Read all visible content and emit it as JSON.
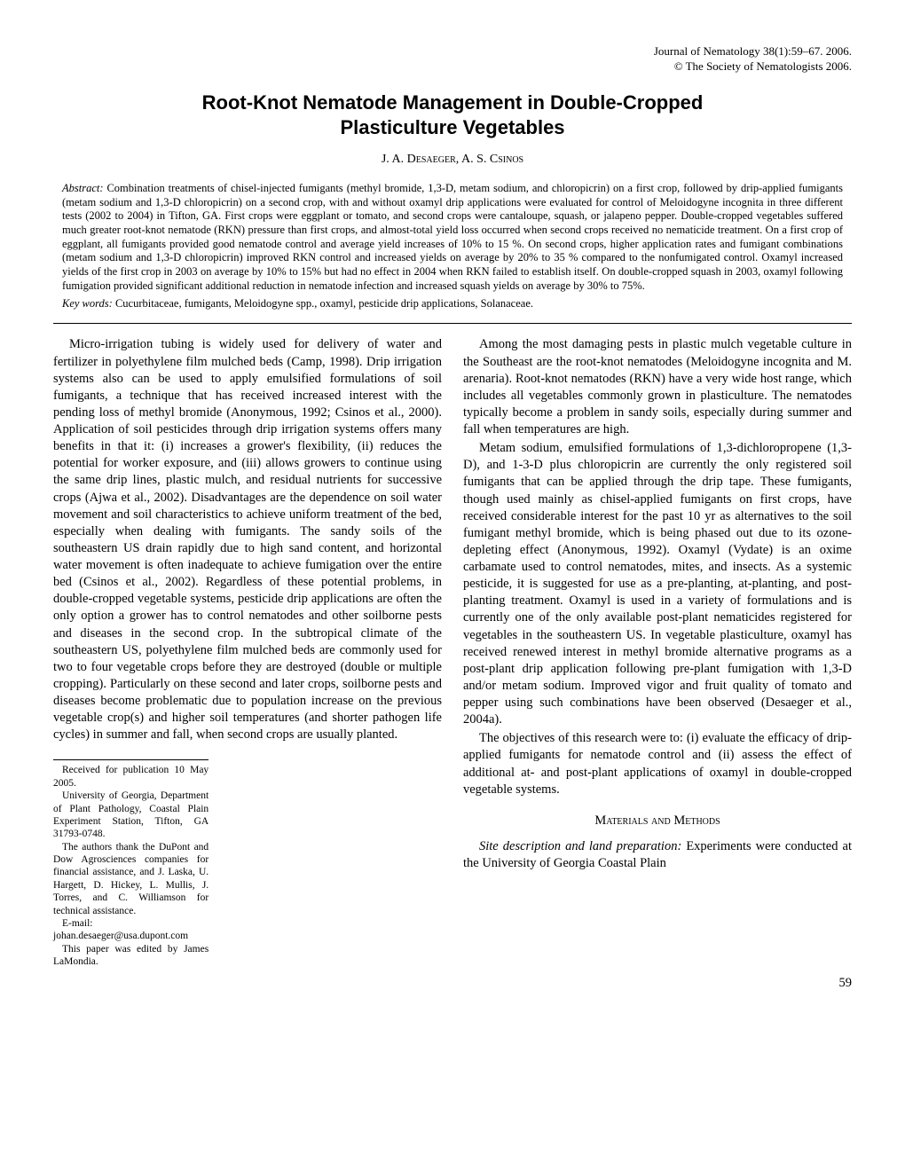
{
  "journal": {
    "line1": "Journal of Nematology 38(1):59–67. 2006.",
    "line2": "© The Society of Nematologists 2006."
  },
  "title_line1": "Root-Knot Nematode Management in Double-Cropped",
  "title_line2": "Plasticulture Vegetables",
  "authors": "J. A. Desaeger, A. S. Csinos",
  "abstract": {
    "label": "Abstract:",
    "text": " Combination treatments of chisel-injected fumigants (methyl bromide, 1,3-D, metam sodium, and chloropicrin) on a first crop, followed by drip-applied fumigants (metam sodium and 1,3-D   chloropicrin) on a second crop, with and without oxamyl drip applications were evaluated for control of Meloidogyne incognita in three different tests (2002 to 2004) in Tifton, GA. First crops were eggplant or tomato, and second crops were cantaloupe, squash, or jalapeno pepper. Double-cropped vegetables suffered much greater root-knot nematode (RKN) pressure than first crops, and almost-total yield loss occurred when second crops received no nematicide treatment. On a first crop of eggplant, all fumigants provided good nematode control and average yield increases of 10% to 15 %. On second crops, higher application rates and fumigant combinations (metam sodium and 1,3-D   chloropicrin) improved RKN control and increased yields on average by 20% to 35 % compared to the nonfumigated control. Oxamyl increased yields of the first crop in 2003 on average by 10% to 15% but had no effect in 2004 when RKN failed to establish itself. On double-cropped squash in 2003, oxamyl following fumigation provided significant additional reduction in nematode infection and increased squash yields on average by 30% to 75%."
  },
  "keywords": {
    "label": "Key words:",
    "text": " Cucurbitaceae, fumigants, Meloidogyne spp., oxamyl, pesticide drip applications, Solanaceae."
  },
  "col1": {
    "p1": "Micro-irrigation tubing is widely used for delivery of water and fertilizer in polyethylene film mulched beds (Camp, 1998). Drip irrigation systems also can be used to apply emulsified formulations of soil fumigants, a technique that has received increased interest with the pending loss of methyl bromide (Anonymous, 1992; Csinos et al., 2000). Application of soil pesticides through drip irrigation systems offers many benefits in that it: (i) increases a grower's flexibility, (ii) reduces the potential for worker exposure, and (iii) allows growers to continue using the same drip lines, plastic mulch, and residual nutrients for successive crops (Ajwa et al., 2002). Disadvantages are the dependence on soil water movement and soil characteristics to achieve uniform treatment of the bed, especially when dealing with fumigants. The sandy soils of the southeastern US drain rapidly due to high sand content, and horizontal water movement is often inadequate to achieve fumigation over the entire bed (Csinos et al., 2002). Regardless of these potential problems, in double-cropped vegetable systems, pesticide drip applications are often the only option a grower has to control nematodes and other soilborne pests and diseases in the second crop. In the subtropical climate of the southeastern US, polyethylene film mulched beds are commonly used for two to four vegetable crops before they are destroyed (double or multiple cropping). Particularly on these second and later crops, soilborne pests and diseases become problematic due to population increase on the previous vegetable crop(s) and higher soil temperatures (and shorter pathogen life cycles) in summer and fall, when second crops are usually planted."
  },
  "col2": {
    "p1": "Among the most damaging pests in plastic mulch vegetable culture in the Southeast are the root-knot nematodes (Meloidogyne incognita and M. arenaria). Root-knot nematodes (RKN) have a very wide host range, which includes all vegetables commonly grown in plasticulture. The nematodes typically become a problem in sandy soils, especially during summer and fall when temperatures are high.",
    "p2": "Metam sodium, emulsified formulations of 1,3-dichloropropene (1,3-D), and 1-3-D plus chloropicrin are currently the only registered soil fumigants that can be applied through the drip tape. These fumigants, though used mainly as chisel-applied fumigants on first crops, have received considerable interest for the past 10 yr as alternatives to the soil fumigant methyl bromide, which is being phased out due to its ozone-depleting effect (Anonymous, 1992). Oxamyl (Vydate) is an oxime carbamate used to control nematodes, mites, and insects. As a systemic pesticide, it is suggested for use as a pre-planting, at-planting, and post-planting treatment. Oxamyl is used in a variety of formulations and is currently one of the only available post-plant nematicides registered for vegetables in the southeastern US. In vegetable plasticulture, oxamyl has received renewed interest in methyl bromide alternative programs as a post-plant drip application following pre-plant fumigation with 1,3-D and/or metam sodium. Improved vigor and fruit quality of tomato and pepper using such combinations have been observed (Desaeger et al., 2004a).",
    "p3": "The objectives of this research were to: (i) evaluate the efficacy of drip-applied fumigants for nematode control and (ii) assess the effect of additional at- and post-plant applications of oxamyl in double-cropped vegetable systems.",
    "section_heading": "Materials and Methods",
    "p4_prefix": "Site description and land preparation:",
    "p4_rest": " Experiments were conducted at the University of Georgia Coastal Plain"
  },
  "footnotes": {
    "f1": "Received for publication 10 May 2005.",
    "f2": "University of Georgia, Department of Plant Pathology, Coastal Plain Experiment Station, Tifton, GA 31793-0748.",
    "f3": "The authors thank the DuPont and Dow Agrosciences companies for financial assistance, and J. Laska, U. Hargett, D. Hickey, L. Mullis, J. Torres, and C. Williamson for technical assistance.",
    "f4": "E-mail: johan.desaeger@usa.dupont.com",
    "f5": "This paper was edited by James LaMondia."
  },
  "page_number": "59"
}
